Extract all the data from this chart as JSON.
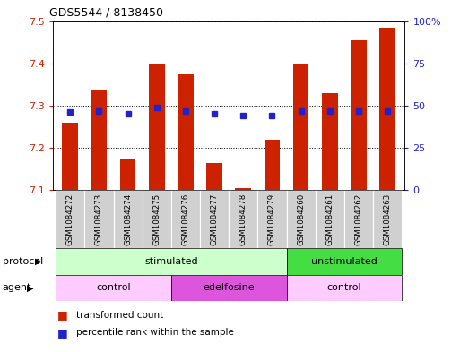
{
  "title": "GDS5544 / 8138450",
  "samples": [
    "GSM1084272",
    "GSM1084273",
    "GSM1084274",
    "GSM1084275",
    "GSM1084276",
    "GSM1084277",
    "GSM1084278",
    "GSM1084279",
    "GSM1084260",
    "GSM1084261",
    "GSM1084262",
    "GSM1084263"
  ],
  "transformed_counts": [
    7.26,
    7.335,
    7.175,
    7.4,
    7.375,
    7.165,
    7.105,
    7.22,
    7.4,
    7.33,
    7.455,
    7.485
  ],
  "percentile_ranks": [
    46,
    47,
    45,
    49,
    47,
    45,
    44,
    44,
    47,
    47,
    47,
    47
  ],
  "ylim": [
    7.1,
    7.5
  ],
  "yticks_left": [
    7.1,
    7.2,
    7.3,
    7.4,
    7.5
  ],
  "yticks_right_vals": [
    0,
    25,
    50,
    75,
    100
  ],
  "yticks_right_labels": [
    "0",
    "25",
    "50",
    "75",
    "100%"
  ],
  "bar_color": "#cc2200",
  "dot_color": "#2222cc",
  "protocol_light_green": "#ccffcc",
  "protocol_dark_green": "#44dd44",
  "agent_light_pink": "#ffccff",
  "agent_dark_pink": "#dd55dd",
  "xticklabel_bg": "#d0d0d0",
  "legend_bar": "transformed count",
  "legend_dot": "percentile rank within the sample"
}
